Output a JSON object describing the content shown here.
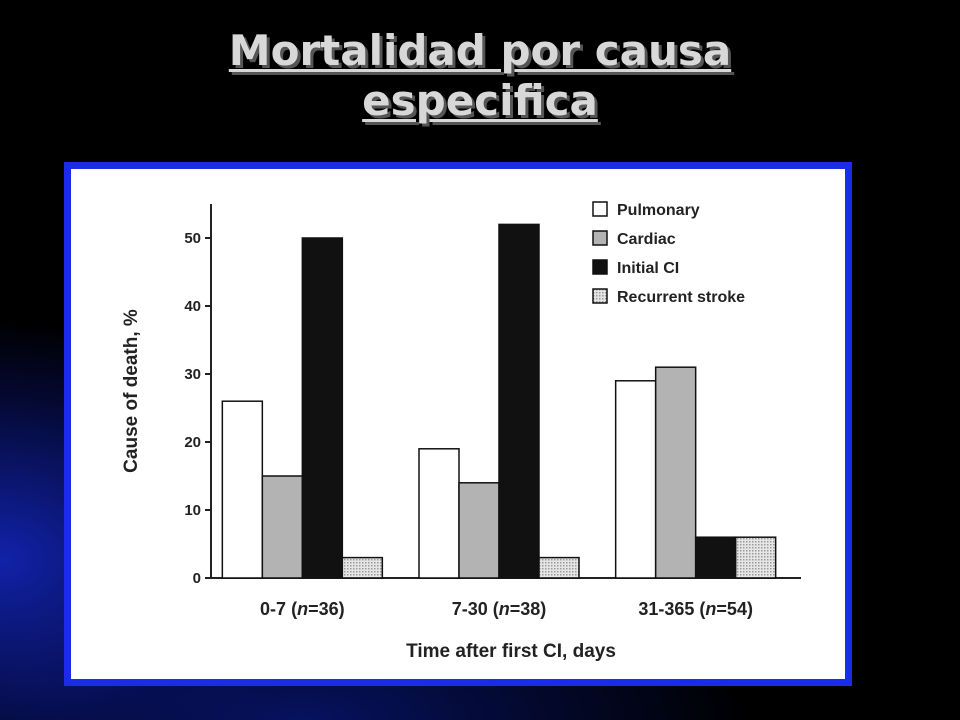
{
  "slide": {
    "title_lines": [
      "Mortalidad por causa",
      "especifica"
    ]
  },
  "colors": {
    "frame_border": "#1a2ce8",
    "pulmonary": "#ffffff",
    "cardiac": "#b3b3b3",
    "initial_ci": "#111111",
    "recurrent_stroke": "#d9d9d9"
  },
  "chart_data": {
    "type": "bar",
    "title": "",
    "xlabel": "Time after first CI, days",
    "ylabel": "Cause of death, %",
    "ylim": [
      0,
      55
    ],
    "yticks": [
      0,
      10,
      20,
      30,
      40,
      50
    ],
    "categories": [
      {
        "range": "0-7",
        "n_label": "n",
        "n_value": "=36"
      },
      {
        "range": "7-30",
        "n_label": "n",
        "n_value": "=38"
      },
      {
        "range": "31-365",
        "n_label": "n",
        "n_value": "=54"
      }
    ],
    "series": [
      {
        "name": "Pulmonary",
        "color_key": "pulmonary",
        "values": [
          26,
          19,
          29
        ]
      },
      {
        "name": "Cardiac",
        "color_key": "cardiac",
        "values": [
          15,
          14,
          31
        ]
      },
      {
        "name": "Initial CI",
        "color_key": "initial_ci",
        "values": [
          50,
          52,
          6
        ]
      },
      {
        "name": "Recurrent stroke",
        "color_key": "recurrent_stroke",
        "values": [
          3,
          3,
          6
        ]
      }
    ],
    "legend_position": "top-right",
    "grid": false
  }
}
